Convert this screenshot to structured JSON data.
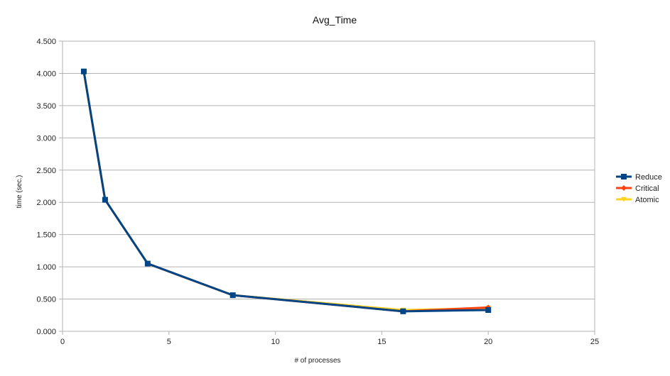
{
  "chart_data": {
    "type": "line",
    "title": "Avg_Time",
    "xlabel": "# of processes",
    "ylabel": "time (sec.)",
    "xlim": [
      0,
      25
    ],
    "ylim": [
      0,
      4.5
    ],
    "x_ticks": [
      0,
      5,
      10,
      15,
      20,
      25
    ],
    "y_ticks": [
      0,
      0.5,
      1,
      1.5,
      2,
      2.5,
      3,
      3.5,
      4,
      4.5
    ],
    "y_tick_labels": [
      "0.000",
      "0.500",
      "1.000",
      "1.500",
      "2.000",
      "2.500",
      "3.000",
      "3.500",
      "4.000",
      "4.500"
    ],
    "grid": "horizontal",
    "legend_position": "right",
    "x": [
      1,
      2,
      4,
      8,
      16,
      20
    ],
    "series": [
      {
        "name": "Atomic",
        "color": "#ffd320",
        "marker": "triangle-down",
        "values": [
          4.03,
          2.04,
          1.05,
          0.56,
          0.33,
          0.36
        ]
      },
      {
        "name": "Critical",
        "color": "#ff420e",
        "marker": "diamond",
        "values": [
          4.03,
          2.04,
          1.05,
          0.56,
          0.31,
          0.37
        ]
      },
      {
        "name": "Reduce",
        "color": "#004586",
        "marker": "square",
        "values": [
          4.03,
          2.04,
          1.05,
          0.56,
          0.31,
          0.33
        ]
      }
    ],
    "legend_order": [
      "Reduce",
      "Critical",
      "Atomic"
    ]
  }
}
